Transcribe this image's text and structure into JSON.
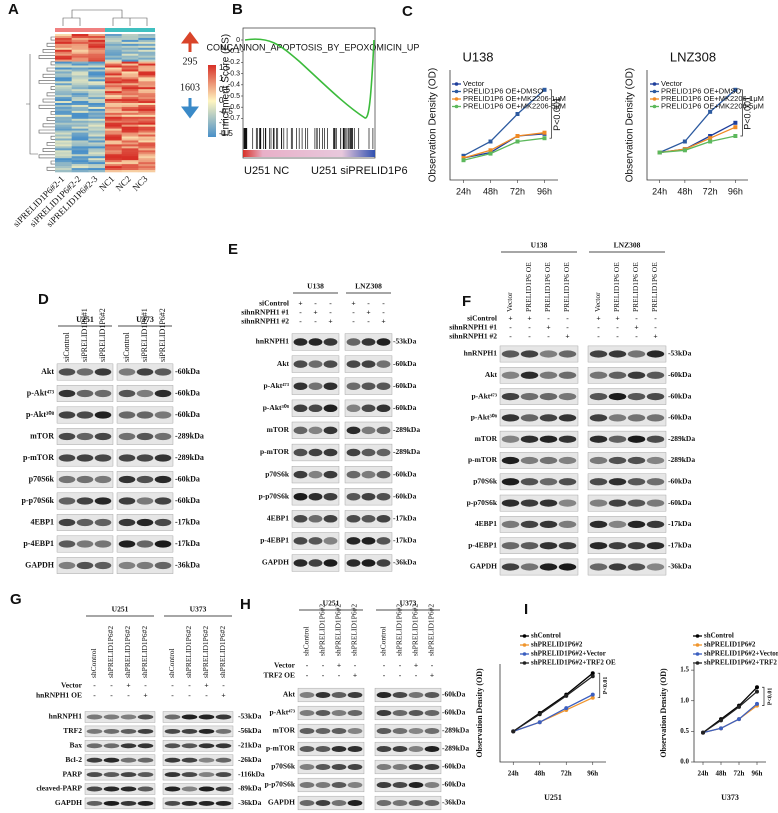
{
  "chart_data": [
    {
      "type": "line",
      "title": "U138",
      "ylabel": "Observation Density (OD)",
      "categories": [
        "24h",
        "48h",
        "72h",
        "96h"
      ],
      "ylim": [
        0.2,
        1.2
      ],
      "annotation": "P<0.001",
      "series": [
        {
          "name": "Vector",
          "color": "#1f3f9c",
          "values": [
            0.4,
            0.45,
            0.6,
            0.62
          ]
        },
        {
          "name": "PRELID1P6 OE+DMSO",
          "color": "#2c5aa0",
          "values": [
            0.42,
            0.55,
            0.8,
            1.02
          ]
        },
        {
          "name": "PRELID1P6 OE+MK2206-1μM",
          "color": "#f08a24",
          "values": [
            0.4,
            0.47,
            0.6,
            0.63
          ]
        },
        {
          "name": "PRELID1P6 OE+MK2206-5μM",
          "color": "#5cb85c",
          "values": [
            0.38,
            0.44,
            0.55,
            0.58
          ]
        }
      ]
    },
    {
      "type": "line",
      "title": "LNZ308",
      "ylabel": "Observation Density (OD)",
      "categories": [
        "24h",
        "48h",
        "72h",
        "96h"
      ],
      "ylim": [
        0.2,
        1.2
      ],
      "annotation": "P<0.001",
      "series": [
        {
          "name": "Vector",
          "color": "#1f3f9c",
          "values": [
            0.45,
            0.48,
            0.6,
            0.72
          ]
        },
        {
          "name": "PRELID1P6 OE+DMSO",
          "color": "#2c5aa0",
          "values": [
            0.45,
            0.55,
            0.82,
            1.02
          ]
        },
        {
          "name": "PRELID1P6 OE+MK2206-1μM",
          "color": "#f08a24",
          "values": [
            0.45,
            0.48,
            0.58,
            0.68
          ]
        },
        {
          "name": "PRELID1P6 OE+MK2206-5μM",
          "color": "#5cb85c",
          "values": [
            0.45,
            0.47,
            0.55,
            0.6
          ]
        }
      ]
    },
    {
      "type": "line",
      "xlabel": "U251",
      "ylabel": "Observation Density (OD)",
      "categories": [
        "24h",
        "48h",
        "72h",
        "96h"
      ],
      "ylim": [
        0,
        1.6
      ],
      "annotation": "P<0.01",
      "series": [
        {
          "name": "shControl",
          "color": "#000000",
          "values": [
            0.5,
            0.8,
            1.1,
            1.45
          ]
        },
        {
          "name": "shPRELID1P6#2",
          "color": "#f0962e",
          "values": [
            0.5,
            0.65,
            0.85,
            1.05
          ]
        },
        {
          "name": "shPRELID1P6#2+Vector",
          "color": "#3b5fc0",
          "values": [
            0.5,
            0.65,
            0.88,
            1.1
          ]
        },
        {
          "name": "shPRELID1P6#2+TRF2 OE",
          "color": "#222222",
          "values": [
            0.5,
            0.78,
            1.08,
            1.4
          ]
        }
      ]
    },
    {
      "type": "line",
      "xlabel": "U373",
      "ylabel": "Observation Density (OD)",
      "categories": [
        "24h",
        "48h",
        "72h",
        "96h"
      ],
      "ylim": [
        0,
        1.6
      ],
      "annotation": "P<0.01",
      "yticks": [
        {
          "value": 0,
          "label": "0.0"
        },
        0.5,
        {
          "value": 1,
          "label": "1.0"
        },
        1.5
      ],
      "series": [
        {
          "name": "shControl",
          "color": "#000000",
          "values": [
            0.48,
            0.7,
            0.92,
            1.22
          ]
        },
        {
          "name": "shPRELID1P6#2",
          "color": "#f0962e",
          "values": [
            0.48,
            0.55,
            0.7,
            0.92
          ]
        },
        {
          "name": "shPRELID1P6#2+Vector",
          "color": "#3b5fc0",
          "values": [
            0.48,
            0.55,
            0.7,
            0.95
          ]
        },
        {
          "name": "shPRELID1P6#2+TRF2 OE",
          "color": "#222222",
          "values": [
            0.48,
            0.68,
            0.9,
            1.15
          ]
        }
      ]
    }
  ],
  "panels": {
    "A": {
      "label": "A",
      "columns": [
        "siPRELID1P6#2-1",
        "siPRELID1P6#2-2",
        "siPRELID1P6#2-3",
        "NC1",
        "NC2",
        "NC3"
      ],
      "scale": [
        "1.5",
        "1",
        "0.5",
        "0",
        "-0.5",
        "-1",
        "-1.5"
      ],
      "up": "295",
      "down": "1603"
    },
    "B": {
      "label": "B",
      "title": "CONCANNON_APOPTOSIS_BY_EPOXOMICIN_UP",
      "ylabel": "Enrichment Score (ES)",
      "yticks": [
        "0",
        "-0.1",
        "-0.2",
        "-0.3",
        "-0.4",
        "-0.5",
        "-0.6",
        "-0.7"
      ],
      "xlabels": [
        "U251 NC",
        "U251 siPRELID1P6"
      ]
    },
    "C": {
      "label": "C"
    },
    "D": {
      "label": "D",
      "groups": [
        {
          "name": "U251",
          "lanes": [
            "siControl",
            "siPRELID1P6#1",
            "siPRELID1P6#2"
          ]
        },
        {
          "name": "U373",
          "lanes": [
            "siControl",
            "siPRELID1P6#1",
            "siPRELID1P6#2"
          ]
        }
      ],
      "conditions": [],
      "rows": [
        {
          "label": "Akt",
          "kda": "-60kDa"
        },
        {
          "label": "p-Akt⁴⁷³",
          "kda": "-60kDa"
        },
        {
          "label": "p-Akt³⁰⁸",
          "kda": "-60kDa"
        },
        {
          "label": "mTOR",
          "kda": "-289kDa"
        },
        {
          "label": "p-mTOR",
          "kda": "-289kDa"
        },
        {
          "label": "p70S6k",
          "kda": "-60kDa"
        },
        {
          "label": "p-p70S6k",
          "kda": "-60kDa"
        },
        {
          "label": "4EBP1",
          "kda": "-17kDa"
        },
        {
          "label": "p-4EBP1",
          "kda": "-17kDa"
        },
        {
          "label": "GAPDH",
          "kda": "-36kDa"
        }
      ]
    },
    "E": {
      "label": "E",
      "groups": [
        {
          "name": "U138",
          "lanes": [
            null,
            null,
            null
          ]
        },
        {
          "name": "LNZ308",
          "lanes": [
            null,
            null,
            null
          ]
        }
      ],
      "conditions": [
        {
          "label": "siControl",
          "signs": [
            [
              "+",
              "-",
              "-"
            ],
            [
              "+",
              "-",
              "-"
            ]
          ]
        },
        {
          "label": "sihnRNPH1 #1",
          "signs": [
            [
              "-",
              "+",
              "-"
            ],
            [
              "-",
              "+",
              "-"
            ]
          ]
        },
        {
          "label": "sihnRNPH1 #2",
          "signs": [
            [
              "-",
              "-",
              "+"
            ],
            [
              "-",
              "-",
              "+"
            ]
          ]
        }
      ],
      "rows": [
        {
          "label": "hnRNPH1",
          "kda": "-53kDa"
        },
        {
          "label": "Akt",
          "kda": "-60kDa"
        },
        {
          "label": "p-Akt⁴⁷³",
          "kda": "-60kDa"
        },
        {
          "label": "p-Akt³⁰⁸",
          "kda": "-60kDa"
        },
        {
          "label": "mTOR",
          "kda": "-289kDa"
        },
        {
          "label": "p-mTOR",
          "kda": "-289kDa"
        },
        {
          "label": "p70S6k",
          "kda": "-60kDa"
        },
        {
          "label": "p-p70S6k",
          "kda": "-60kDa"
        },
        {
          "label": "4EBP1",
          "kda": "-17kDa"
        },
        {
          "label": "p-4EBP1",
          "kda": "-17kDa"
        },
        {
          "label": "GAPDH",
          "kda": "-36kDa"
        }
      ]
    },
    "F": {
      "label": "F",
      "groups": [
        {
          "name": "U138",
          "lanes": [
            "Vector",
            "PRELID1P6 OE",
            "PRELID1P6 OE",
            "PRELID1P6 OE"
          ]
        },
        {
          "name": "LNZ308",
          "lanes": [
            "Vector",
            "PRELID1P6 OE",
            "PRELID1P6 OE",
            "PRELID1P6 OE"
          ]
        }
      ],
      "conditions": [
        {
          "label": "siControl",
          "signs": [
            [
              "+",
              "+",
              "-",
              "-"
            ],
            [
              "+",
              "+",
              "-",
              "-"
            ]
          ]
        },
        {
          "label": "sihnRNPH1 #1",
          "signs": [
            [
              "-",
              "-",
              "+",
              "-"
            ],
            [
              "-",
              "-",
              "+",
              "-"
            ]
          ]
        },
        {
          "label": "sihnRNPH1 #2",
          "signs": [
            [
              "-",
              "-",
              "-",
              "+"
            ],
            [
              "-",
              "-",
              "-",
              "+"
            ]
          ]
        }
      ],
      "rows": [
        {
          "label": "hnRNPH1",
          "kda": "-53kDa"
        },
        {
          "label": "Akt",
          "kda": "-60kDa"
        },
        {
          "label": "p-Akt⁴⁷³",
          "kda": "-60kDa"
        },
        {
          "label": "p-Akt³⁰⁸",
          "kda": "-60kDa"
        },
        {
          "label": "mTOR",
          "kda": "-289kDa"
        },
        {
          "label": "p-mTOR",
          "kda": "-289kDa"
        },
        {
          "label": "p70S6k",
          "kda": "-60kDa"
        },
        {
          "label": "p-p70S6k",
          "kda": "-60kDa"
        },
        {
          "label": "4EBP1",
          "kda": "-17kDa"
        },
        {
          "label": "p-4EBP1",
          "kda": "-17kDa"
        },
        {
          "label": "GAPDH",
          "kda": "-36kDa"
        }
      ]
    },
    "G": {
      "label": "G",
      "groups": [
        {
          "name": "U251",
          "lanes": [
            "shControl",
            "shPRELID1P6#2",
            "shPRELID1P6#2",
            "shPRELID1P6#2"
          ]
        },
        {
          "name": "U373",
          "lanes": [
            "shControl",
            "shPRELID1P6#2",
            "shPRELID1P6#2",
            "shPRELID1P6#2"
          ]
        }
      ],
      "conditions": [
        {
          "label": "Vector",
          "signs": [
            [
              "-",
              "-",
              "+",
              "-"
            ],
            [
              "-",
              "-",
              "+",
              "-"
            ]
          ]
        },
        {
          "label": "hnRNPH1 OE",
          "signs": [
            [
              "-",
              "-",
              "-",
              "+"
            ],
            [
              "-",
              "-",
              "-",
              "+"
            ]
          ]
        }
      ],
      "rows": [
        {
          "label": "hnRNPH1",
          "kda": "-53kDa"
        },
        {
          "label": "TRF2",
          "kda": "-56kDa"
        },
        {
          "label": "Bax",
          "kda": "-21kDa"
        },
        {
          "label": "Bcl-2",
          "kda": "-26kDa"
        },
        {
          "label": "PARP",
          "kda": "-116kDa"
        },
        {
          "label": "cleaved-PARP",
          "kda": "-89kDa"
        },
        {
          "label": "GAPDH",
          "kda": "-36kDa"
        }
      ]
    },
    "H": {
      "label": "H",
      "groups": [
        {
          "name": "U251",
          "lanes": [
            "shControl",
            "shPRELID1P6#2",
            "shPRELID1P6#2",
            "shPRELID1P6#2"
          ]
        },
        {
          "name": "U373",
          "lanes": [
            "shControl",
            "shPRELID1P6#2",
            "shPRELID1P6#2",
            "shPRELID1P6#2"
          ]
        }
      ],
      "conditions": [
        {
          "label": "Vector",
          "signs": [
            [
              "-",
              "-",
              "+",
              "-"
            ],
            [
              "-",
              "-",
              "+",
              "-"
            ]
          ]
        },
        {
          "label": "TRF2 OE",
          "signs": [
            [
              "-",
              "-",
              "-",
              "+"
            ],
            [
              "-",
              "-",
              "-",
              "+"
            ]
          ]
        }
      ],
      "rows": [
        {
          "label": "Akt",
          "kda": "-60kDa"
        },
        {
          "label": "p-Akt⁴⁷³",
          "kda": "-60kDa"
        },
        {
          "label": "mTOR",
          "kda": "-289kDa"
        },
        {
          "label": "p-mTOR",
          "kda": "-289kDa"
        },
        {
          "label": "p70S6k",
          "kda": "-60kDa"
        },
        {
          "label": "p-p70S6k",
          "kda": "-60kDa"
        },
        {
          "label": "GAPDH",
          "kda": "-36kDa"
        }
      ]
    },
    "I": {
      "label": "I"
    }
  }
}
